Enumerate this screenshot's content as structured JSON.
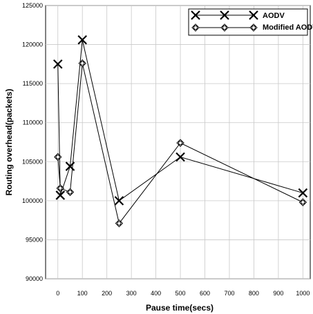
{
  "chart_data": {
    "type": "line",
    "xlabel": "Pause time(secs)",
    "ylabel": "Routing overhead(packets)",
    "xlim": [
      -50,
      1030
    ],
    "ylim": [
      90000,
      125000
    ],
    "xticks": [
      0,
      100,
      200,
      300,
      400,
      500,
      600,
      700,
      800,
      900,
      1000
    ],
    "xtick_labels": [
      "0",
      "100",
      "200",
      "300",
      "400",
      "500",
      "600",
      "700",
      "800",
      "900",
      "1000"
    ],
    "yticks": [
      90000,
      95000,
      100000,
      105000,
      110000,
      115000,
      120000,
      125000
    ],
    "ytick_labels": [
      "90000",
      "95000",
      "100000",
      "105000",
      "110000",
      "115000",
      "120000",
      "125000"
    ],
    "grid": true,
    "legend_position": "top-right",
    "series": [
      {
        "name": "AODV",
        "marker": "x",
        "x": [
          0,
          10,
          50,
          100,
          250,
          500,
          1000
        ],
        "y": [
          117500,
          100700,
          104400,
          120600,
          100000,
          105600,
          101000
        ]
      },
      {
        "name": "Modified AODV",
        "marker": "diamond-circle",
        "x": [
          0,
          10,
          50,
          100,
          250,
          500,
          1000
        ],
        "y": [
          105600,
          101600,
          101100,
          117600,
          97100,
          107400,
          99800
        ]
      }
    ]
  }
}
